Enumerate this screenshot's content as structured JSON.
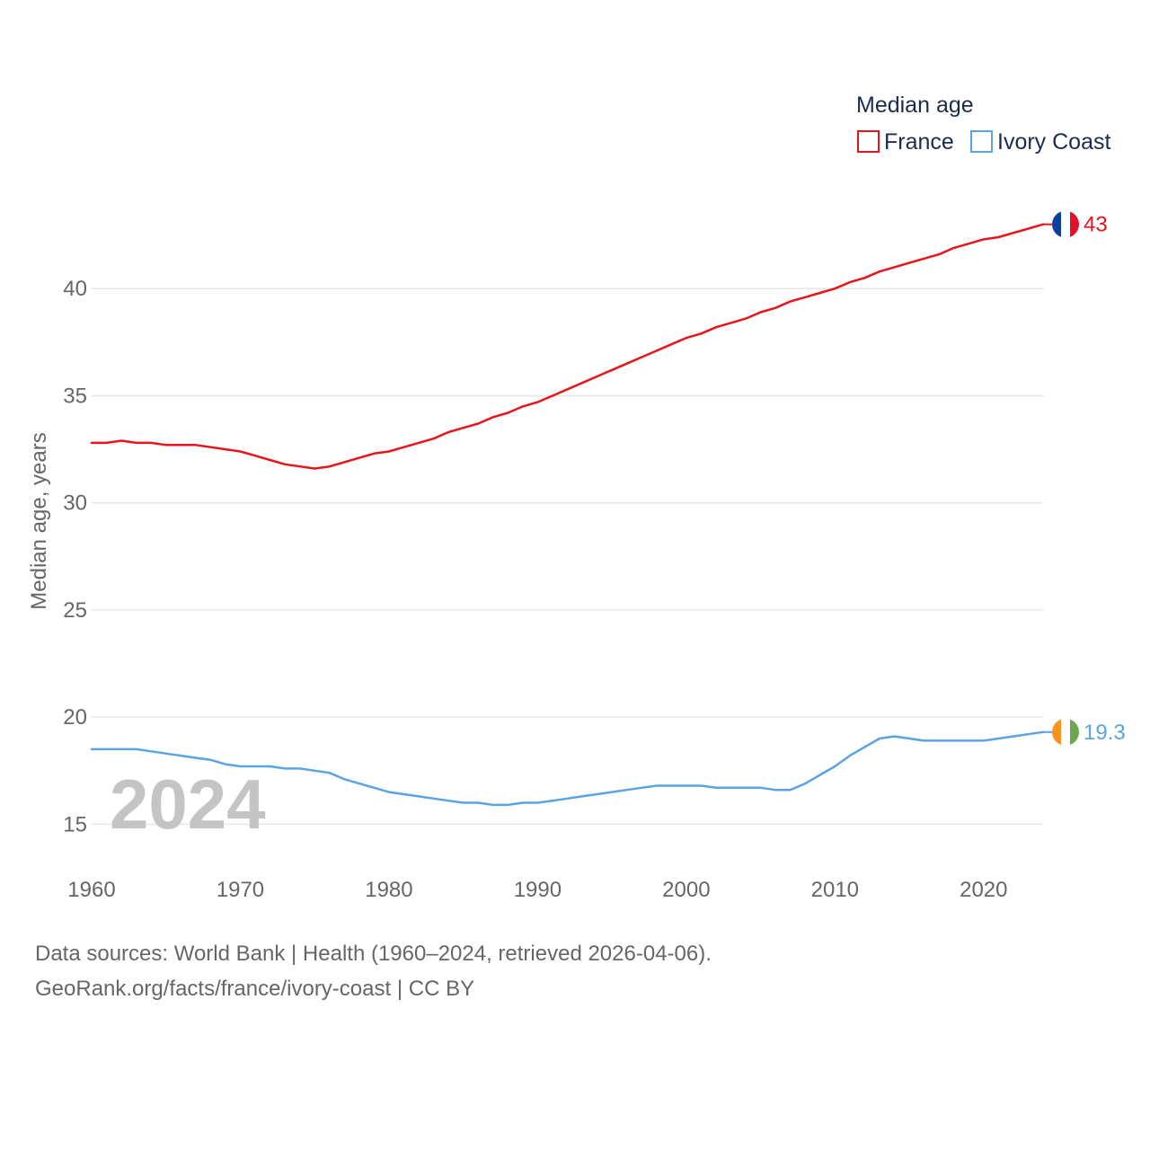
{
  "chart_data": {
    "type": "line",
    "legend_title": "Median age",
    "ylabel": "Median age, years",
    "xlabel": "",
    "xlim": [
      1960,
      2024
    ],
    "ylim": [
      13.8,
      47.6
    ],
    "y_ticks": [
      15,
      20,
      25,
      30,
      35,
      40
    ],
    "x_ticks": [
      1960,
      1970,
      1980,
      1990,
      2000,
      2010,
      2020
    ],
    "year_label": "2024",
    "legend_position": "top-right",
    "x": [
      1960,
      1961,
      1962,
      1963,
      1964,
      1965,
      1966,
      1967,
      1968,
      1969,
      1970,
      1971,
      1972,
      1973,
      1974,
      1975,
      1976,
      1977,
      1978,
      1979,
      1980,
      1981,
      1982,
      1983,
      1984,
      1985,
      1986,
      1987,
      1988,
      1989,
      1990,
      1991,
      1992,
      1993,
      1994,
      1995,
      1996,
      1997,
      1998,
      1999,
      2000,
      2001,
      2002,
      2003,
      2004,
      2005,
      2006,
      2007,
      2008,
      2009,
      2010,
      2011,
      2012,
      2013,
      2014,
      2015,
      2016,
      2017,
      2018,
      2019,
      2020,
      2021,
      2022,
      2023,
      2024
    ],
    "series": [
      {
        "name": "France",
        "color": "#e8141c",
        "end_label": "43",
        "flag": "france-flag",
        "values": [
          32.8,
          32.8,
          32.9,
          32.8,
          32.8,
          32.7,
          32.7,
          32.7,
          32.6,
          32.5,
          32.4,
          32.2,
          32.0,
          31.8,
          31.7,
          31.6,
          31.7,
          31.9,
          32.1,
          32.3,
          32.4,
          32.6,
          32.8,
          33.0,
          33.3,
          33.5,
          33.7,
          34.0,
          34.2,
          34.5,
          34.7,
          35.0,
          35.3,
          35.6,
          35.9,
          36.2,
          36.5,
          36.8,
          37.1,
          37.4,
          37.7,
          37.9,
          38.2,
          38.4,
          38.6,
          38.9,
          39.1,
          39.4,
          39.6,
          39.8,
          40.0,
          40.3,
          40.5,
          40.8,
          41.0,
          41.2,
          41.4,
          41.6,
          41.9,
          42.1,
          42.3,
          42.4,
          42.6,
          42.8,
          43.0
        ]
      },
      {
        "name": "Ivory Coast",
        "color": "#5ba3e3",
        "end_label": "19.3",
        "flag": "ivory-coast-flag",
        "values": [
          18.5,
          18.5,
          18.5,
          18.5,
          18.4,
          18.3,
          18.2,
          18.1,
          18.0,
          17.8,
          17.7,
          17.7,
          17.7,
          17.6,
          17.6,
          17.5,
          17.4,
          17.1,
          16.9,
          16.7,
          16.5,
          16.4,
          16.3,
          16.2,
          16.1,
          16.0,
          16.0,
          15.9,
          15.9,
          16.0,
          16.0,
          16.1,
          16.2,
          16.3,
          16.4,
          16.5,
          16.6,
          16.7,
          16.8,
          16.8,
          16.8,
          16.8,
          16.7,
          16.7,
          16.7,
          16.7,
          16.6,
          16.6,
          16.9,
          17.3,
          17.7,
          18.2,
          18.6,
          19.0,
          19.1,
          19.0,
          18.9,
          18.9,
          18.9,
          18.9,
          18.9,
          19.0,
          19.1,
          19.2,
          19.3
        ]
      }
    ]
  },
  "footer": {
    "sources": "Data sources: World Bank | Health (1960–2024, retrieved 2026-04-06).",
    "attribution": "GeoRank.org/facts/france/ivory-coast | CC BY"
  }
}
